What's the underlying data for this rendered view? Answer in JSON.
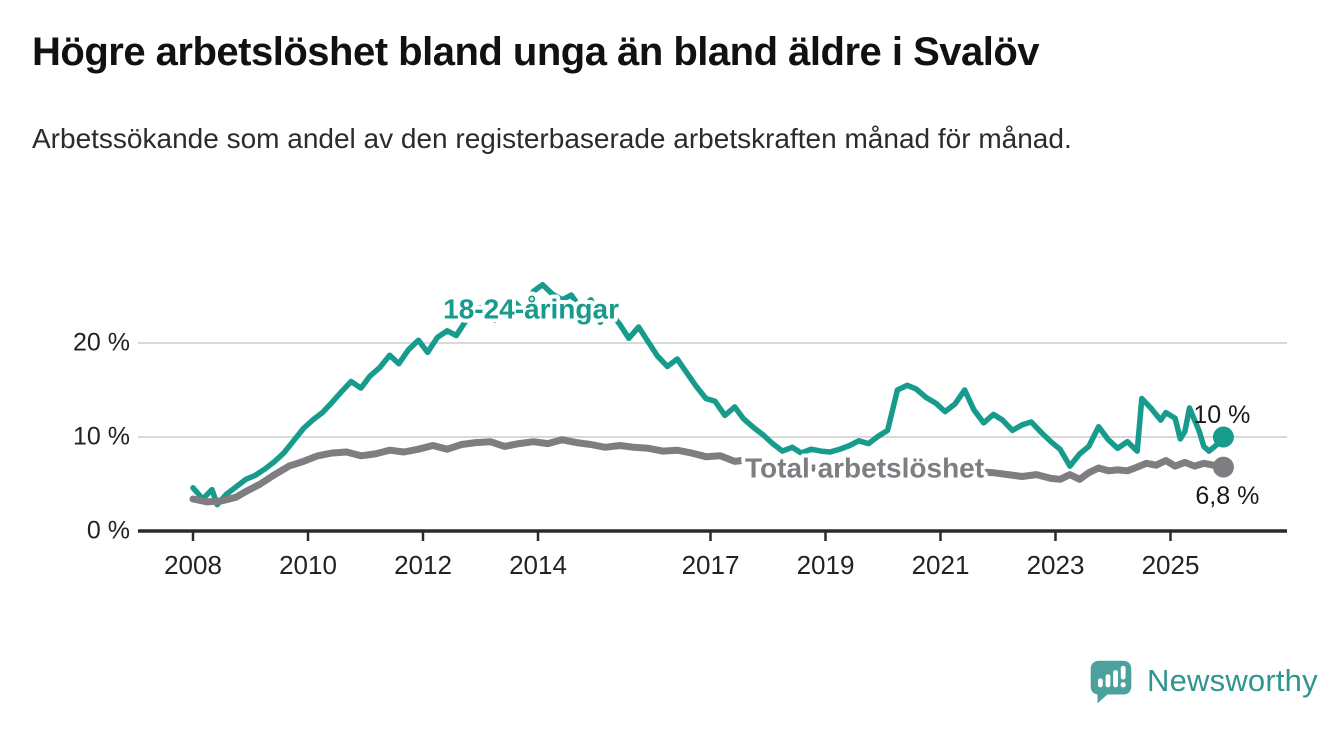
{
  "header": {
    "title": "Högre arbetslöshet bland unga än bland äldre i Svalöv",
    "subtitle": "Arbetssökande som andel av den registerbaserade arbetskraften månad för månad."
  },
  "chart_data": {
    "type": "line",
    "title": "Högre arbetslöshet bland unga än bland äldre i Svalöv",
    "subtitle": "Arbetssökande som andel av den registerbaserade arbetskraften månad för månad.",
    "xlabel": "",
    "ylabel": "",
    "grid": "horizontal",
    "xlim": [
      2007.9,
      2026.1
    ],
    "ylim": [
      0,
      27.5
    ],
    "x_ticks": {
      "years": [
        2008,
        2010,
        2012,
        2014,
        2017,
        2019,
        2021,
        2023,
        2025
      ],
      "labels": [
        "2008",
        "2010",
        "2012",
        "2014",
        "2017",
        "2019",
        "2021",
        "2023",
        "2025"
      ]
    },
    "y_ticks": {
      "values": [
        0,
        10,
        20
      ],
      "labels": [
        "0 %",
        "10 %",
        "20 %"
      ]
    },
    "axis_color": "#2b2b2b",
    "grid_color": "#d9d9d9",
    "tick_label_color": "#222222",
    "series": [
      {
        "name": "18-24-åringar",
        "color": "#169b8c",
        "line_width": 5.5,
        "label": {
          "text": "18-24-åringar",
          "x": 2012.35,
          "y": 23.4
        },
        "end_label": "10 %",
        "end_value": 10,
        "points": [
          [
            2008.0,
            4.6
          ],
          [
            2008.17,
            3.4
          ],
          [
            2008.33,
            4.4
          ],
          [
            2008.42,
            2.8
          ],
          [
            2008.58,
            3.9
          ],
          [
            2008.75,
            4.7
          ],
          [
            2008.92,
            5.5
          ],
          [
            2009.08,
            5.9
          ],
          [
            2009.25,
            6.6
          ],
          [
            2009.42,
            7.4
          ],
          [
            2009.58,
            8.3
          ],
          [
            2009.75,
            9.6
          ],
          [
            2009.92,
            10.9
          ],
          [
            2010.08,
            11.8
          ],
          [
            2010.25,
            12.6
          ],
          [
            2010.42,
            13.7
          ],
          [
            2010.58,
            14.8
          ],
          [
            2010.75,
            15.9
          ],
          [
            2010.92,
            15.2
          ],
          [
            2011.08,
            16.5
          ],
          [
            2011.25,
            17.4
          ],
          [
            2011.42,
            18.7
          ],
          [
            2011.58,
            17.8
          ],
          [
            2011.75,
            19.3
          ],
          [
            2011.92,
            20.3
          ],
          [
            2012.08,
            19.0
          ],
          [
            2012.25,
            20.6
          ],
          [
            2012.42,
            21.3
          ],
          [
            2012.58,
            20.8
          ],
          [
            2012.75,
            22.4
          ],
          [
            2012.92,
            23.6
          ],
          [
            2013.08,
            23.9
          ],
          [
            2013.25,
            22.4
          ],
          [
            2013.42,
            23.8
          ],
          [
            2013.58,
            24.4
          ],
          [
            2013.75,
            23.4
          ],
          [
            2013.92,
            25.5
          ],
          [
            2014.08,
            26.2
          ],
          [
            2014.25,
            25.2
          ],
          [
            2014.42,
            24.6
          ],
          [
            2014.58,
            25.1
          ],
          [
            2014.75,
            23.6
          ],
          [
            2014.92,
            24.6
          ],
          [
            2015.08,
            22.2
          ],
          [
            2015.25,
            23.3
          ],
          [
            2015.42,
            22.0
          ],
          [
            2015.58,
            20.5
          ],
          [
            2015.75,
            21.7
          ],
          [
            2015.92,
            20.1
          ],
          [
            2016.08,
            18.6
          ],
          [
            2016.25,
            17.5
          ],
          [
            2016.42,
            18.3
          ],
          [
            2016.58,
            16.9
          ],
          [
            2016.75,
            15.4
          ],
          [
            2016.92,
            14.1
          ],
          [
            2017.08,
            13.8
          ],
          [
            2017.25,
            12.3
          ],
          [
            2017.42,
            13.2
          ],
          [
            2017.58,
            11.9
          ],
          [
            2017.75,
            11.0
          ],
          [
            2017.92,
            10.2
          ],
          [
            2018.08,
            9.3
          ],
          [
            2018.25,
            8.5
          ],
          [
            2018.42,
            8.9
          ],
          [
            2018.58,
            8.3
          ],
          [
            2018.75,
            8.7
          ],
          [
            2018.92,
            8.5
          ],
          [
            2019.08,
            8.4
          ],
          [
            2019.25,
            8.7
          ],
          [
            2019.42,
            9.1
          ],
          [
            2019.58,
            9.6
          ],
          [
            2019.75,
            9.3
          ],
          [
            2019.92,
            10.1
          ],
          [
            2020.08,
            10.7
          ],
          [
            2020.25,
            15.0
          ],
          [
            2020.42,
            15.5
          ],
          [
            2020.58,
            15.1
          ],
          [
            2020.75,
            14.2
          ],
          [
            2020.92,
            13.6
          ],
          [
            2021.08,
            12.7
          ],
          [
            2021.25,
            13.5
          ],
          [
            2021.42,
            15.0
          ],
          [
            2021.58,
            12.9
          ],
          [
            2021.75,
            11.5
          ],
          [
            2021.92,
            12.4
          ],
          [
            2022.08,
            11.8
          ],
          [
            2022.25,
            10.7
          ],
          [
            2022.42,
            11.3
          ],
          [
            2022.58,
            11.6
          ],
          [
            2022.75,
            10.5
          ],
          [
            2022.92,
            9.5
          ],
          [
            2023.08,
            8.7
          ],
          [
            2023.25,
            6.9
          ],
          [
            2023.42,
            8.2
          ],
          [
            2023.58,
            9.0
          ],
          [
            2023.75,
            11.1
          ],
          [
            2023.92,
            9.7
          ],
          [
            2024.08,
            8.8
          ],
          [
            2024.25,
            9.5
          ],
          [
            2024.42,
            8.5
          ],
          [
            2024.5,
            14.1
          ],
          [
            2024.67,
            13.0
          ],
          [
            2024.83,
            11.8
          ],
          [
            2024.92,
            12.6
          ],
          [
            2025.08,
            12.0
          ],
          [
            2025.17,
            9.8
          ],
          [
            2025.25,
            10.6
          ],
          [
            2025.33,
            13.1
          ],
          [
            2025.5,
            10.6
          ],
          [
            2025.58,
            9.0
          ],
          [
            2025.67,
            8.5
          ],
          [
            2025.83,
            9.3
          ],
          [
            2025.92,
            10.0
          ]
        ]
      },
      {
        "name": "Total arbetslöshet",
        "color": "#7d7d82",
        "line_width": 7,
        "label": {
          "text": "Total arbetslöshet",
          "x": 2017.6,
          "y": 6.5
        },
        "end_label": "6,8 %",
        "end_value": 6.8,
        "points": [
          [
            2008.0,
            3.4
          ],
          [
            2008.25,
            3.1
          ],
          [
            2008.5,
            3.2
          ],
          [
            2008.75,
            3.6
          ],
          [
            2008.92,
            4.2
          ],
          [
            2009.17,
            5.0
          ],
          [
            2009.42,
            6.0
          ],
          [
            2009.67,
            6.9
          ],
          [
            2009.92,
            7.4
          ],
          [
            2010.17,
            8.0
          ],
          [
            2010.42,
            8.3
          ],
          [
            2010.67,
            8.4
          ],
          [
            2010.92,
            8.0
          ],
          [
            2011.17,
            8.2
          ],
          [
            2011.42,
            8.6
          ],
          [
            2011.67,
            8.4
          ],
          [
            2011.92,
            8.7
          ],
          [
            2012.17,
            9.1
          ],
          [
            2012.42,
            8.7
          ],
          [
            2012.67,
            9.2
          ],
          [
            2012.92,
            9.4
          ],
          [
            2013.17,
            9.5
          ],
          [
            2013.42,
            9.0
          ],
          [
            2013.67,
            9.3
          ],
          [
            2013.92,
            9.5
          ],
          [
            2014.17,
            9.3
          ],
          [
            2014.42,
            9.7
          ],
          [
            2014.67,
            9.4
          ],
          [
            2014.92,
            9.2
          ],
          [
            2015.17,
            8.9
          ],
          [
            2015.42,
            9.1
          ],
          [
            2015.67,
            8.9
          ],
          [
            2015.92,
            8.8
          ],
          [
            2016.17,
            8.5
          ],
          [
            2016.42,
            8.6
          ],
          [
            2016.67,
            8.3
          ],
          [
            2016.92,
            7.9
          ],
          [
            2017.17,
            8.0
          ],
          [
            2017.42,
            7.4
          ],
          [
            2017.67,
            7.6
          ],
          [
            2017.92,
            7.0
          ],
          [
            2018.17,
            6.9
          ],
          [
            2018.42,
            6.7
          ],
          [
            2018.67,
            6.8
          ],
          [
            2018.92,
            6.6
          ],
          [
            2019.17,
            6.5
          ],
          [
            2019.42,
            6.3
          ],
          [
            2019.67,
            6.1
          ],
          [
            2019.92,
            6.4
          ],
          [
            2020.17,
            6.9
          ],
          [
            2020.42,
            7.4
          ],
          [
            2020.67,
            7.2
          ],
          [
            2020.92,
            7.0
          ],
          [
            2021.17,
            6.8
          ],
          [
            2021.42,
            6.6
          ],
          [
            2021.67,
            6.3
          ],
          [
            2021.92,
            6.2
          ],
          [
            2022.17,
            6.0
          ],
          [
            2022.42,
            5.8
          ],
          [
            2022.67,
            6.0
          ],
          [
            2022.92,
            5.6
          ],
          [
            2023.08,
            5.5
          ],
          [
            2023.25,
            6.0
          ],
          [
            2023.42,
            5.5
          ],
          [
            2023.58,
            6.2
          ],
          [
            2023.75,
            6.7
          ],
          [
            2023.92,
            6.4
          ],
          [
            2024.08,
            6.5
          ],
          [
            2024.25,
            6.4
          ],
          [
            2024.42,
            6.8
          ],
          [
            2024.58,
            7.2
          ],
          [
            2024.75,
            7.0
          ],
          [
            2024.92,
            7.5
          ],
          [
            2025.08,
            6.9
          ],
          [
            2025.25,
            7.3
          ],
          [
            2025.42,
            6.9
          ],
          [
            2025.58,
            7.2
          ],
          [
            2025.75,
            7.0
          ],
          [
            2025.92,
            6.8
          ]
        ]
      }
    ]
  },
  "footer": {
    "brand": "Newsworthy",
    "brand_color": "#2e968f",
    "icon": "speech-bubble-bar-chart-icon",
    "icon_color": "#4ba29c"
  }
}
